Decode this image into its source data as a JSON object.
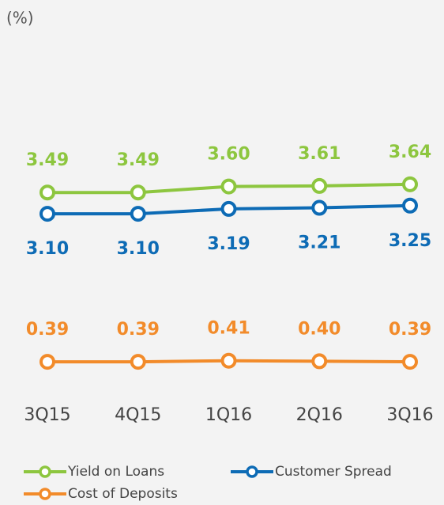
{
  "chart_data": {
    "type": "line",
    "y_label": "(%)",
    "categories": [
      "3Q15",
      "4Q15",
      "1Q16",
      "2Q16",
      "3Q16"
    ],
    "ylim": [
      0,
      4
    ],
    "series": [
      {
        "name": "Yield on Loans",
        "color": "#8dc63f",
        "values": [
          3.49,
          3.49,
          3.6,
          3.61,
          3.64
        ],
        "value_labels": [
          "3.49",
          "3.49",
          "3.60",
          "3.61",
          "3.64"
        ],
        "label_position": "above"
      },
      {
        "name": "Customer Spread",
        "color": "#0d6bb5",
        "values": [
          3.1,
          3.1,
          3.19,
          3.21,
          3.25
        ],
        "value_labels": [
          "3.10",
          "3.10",
          "3.19",
          "3.21",
          "3.25"
        ],
        "label_position": "below"
      },
      {
        "name": "Cost of Deposits",
        "color": "#f28b2a",
        "values": [
          0.39,
          0.39,
          0.41,
          0.4,
          0.39
        ],
        "value_labels": [
          "0.39",
          "0.39",
          "0.41",
          "0.40",
          "0.39"
        ],
        "label_position": "above"
      }
    ]
  }
}
